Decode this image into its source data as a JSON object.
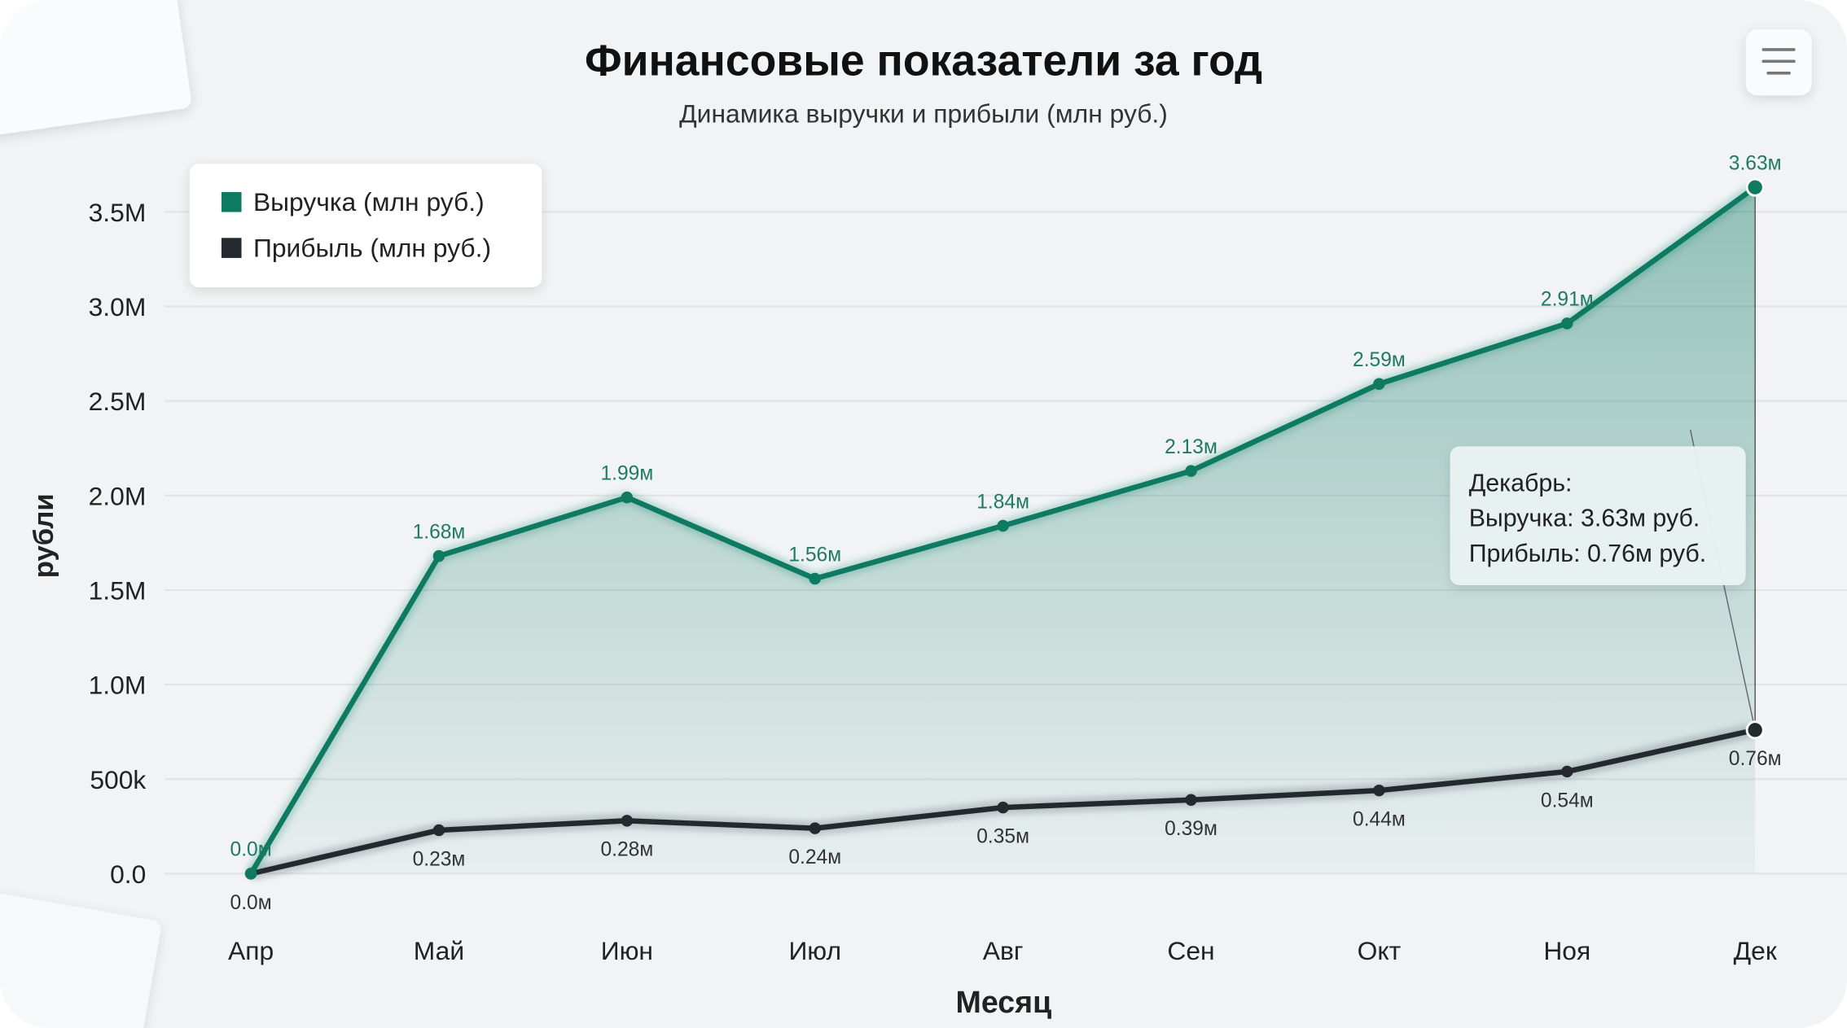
{
  "menu_icon": "hamburger-menu-icon",
  "chart_data": {
    "type": "area",
    "title": "Финансовые показатели за год",
    "subtitle": "Динамика выручки и прибыли (млн руб.)",
    "xlabel": "Месяц",
    "ylabel": "рубли",
    "categories": [
      "Апр",
      "Май",
      "Июн",
      "Июл",
      "Авг",
      "Сен",
      "Окт",
      "Ноя",
      "Дек"
    ],
    "ylim": [
      0,
      3.7
    ],
    "yticks": [
      0,
      0.5,
      1.0,
      1.5,
      2.0,
      2.5,
      3.0,
      3.5
    ],
    "ytick_labels": [
      "0.0",
      "500k",
      "1.0M",
      "1.5M",
      "2.0M",
      "2.5M",
      "3.0M",
      "3.5M"
    ],
    "grid": true,
    "legend_position": "top-left",
    "series": [
      {
        "name": "Выручка (млн руб.)",
        "color": "#0f7a62",
        "values": [
          0.0,
          1.68,
          1.99,
          1.56,
          1.84,
          2.13,
          2.59,
          2.91,
          3.63
        ],
        "labels": [
          "0.0м",
          "1.68м",
          "1.99м",
          "1.56м",
          "1.84м",
          "2.13м",
          "2.59м",
          "2.91м",
          "3.63м"
        ]
      },
      {
        "name": "Прибыль (млн руб.)",
        "color": "#23292f",
        "values": [
          0.0,
          0.23,
          0.28,
          0.24,
          0.35,
          0.39,
          0.44,
          0.54,
          0.76
        ],
        "labels": [
          "0.0м",
          "0.23м",
          "0.28м",
          "0.24м",
          "0.35м",
          "0.39м",
          "0.44м",
          "0.54м",
          "0.76м"
        ]
      }
    ],
    "tooltip": {
      "title": "Декабрь:",
      "line1": "Выручка: 3.63м руб.",
      "line2": "Прибыль: 0.76м руб."
    }
  }
}
